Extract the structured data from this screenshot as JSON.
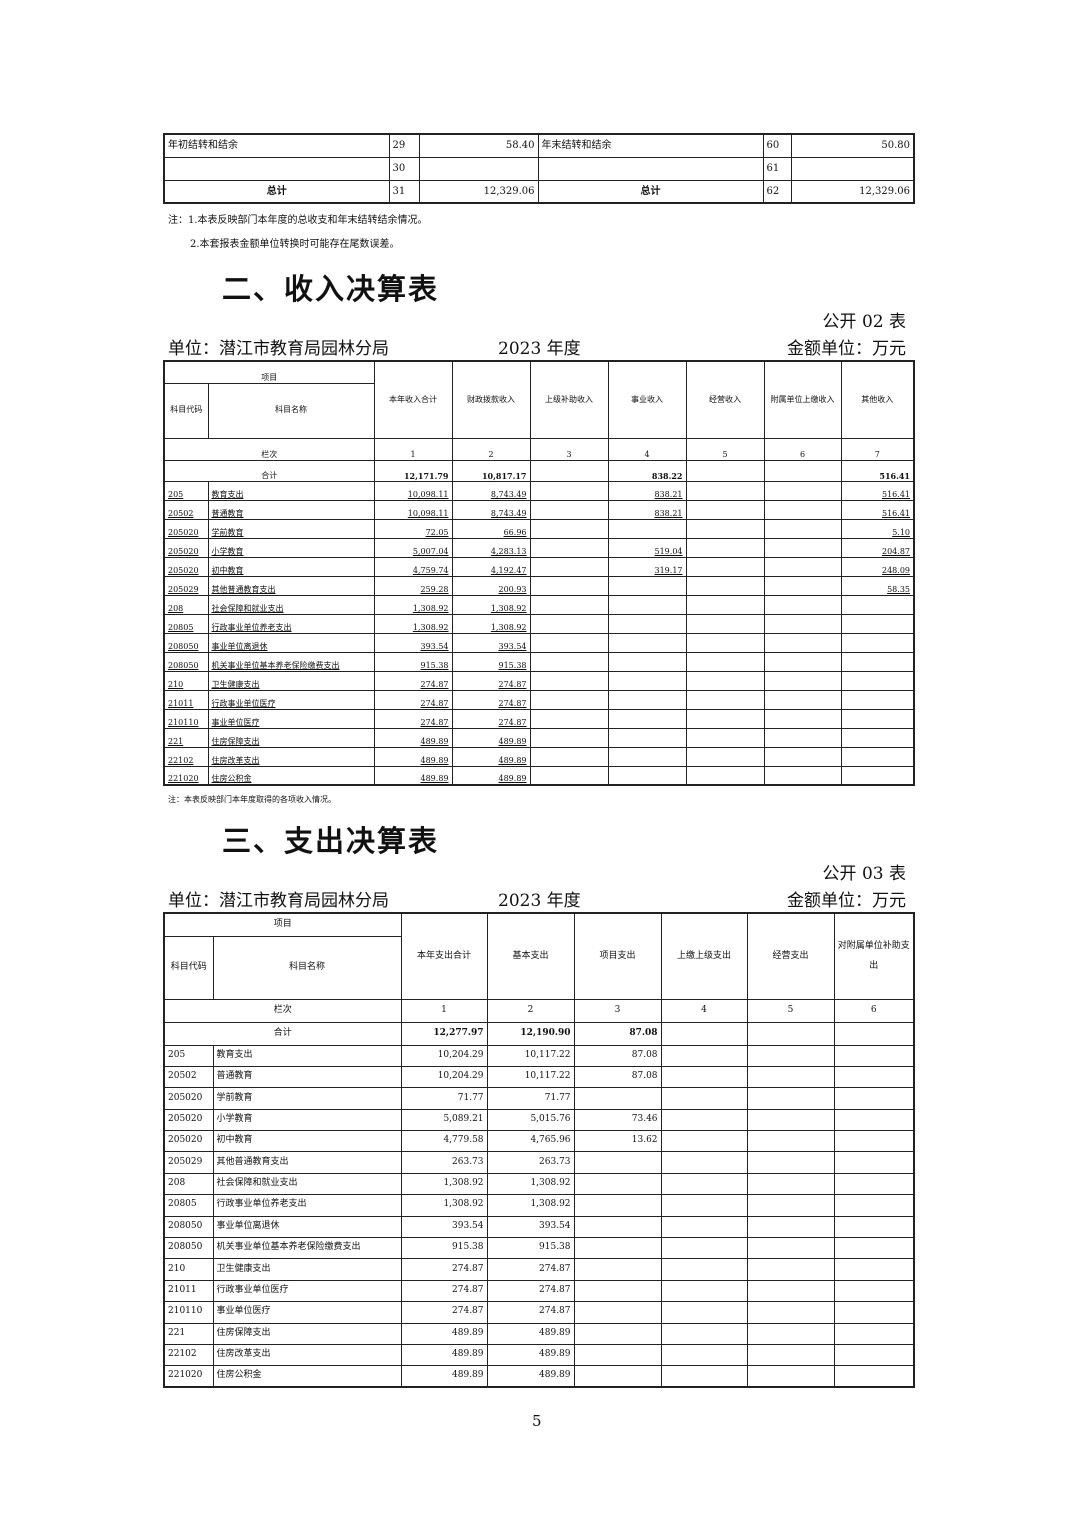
{
  "summary_table": {
    "rows": [
      {
        "left_label": "年初结转和结余",
        "left_no": "29",
        "left_amount": "58.40",
        "right_label": "年末结转和结余",
        "right_no": "60",
        "right_amount": "50.80"
      },
      {
        "left_label": "",
        "left_no": "30",
        "left_amount": "",
        "right_label": "",
        "right_no": "61",
        "right_amount": ""
      },
      {
        "left_label": "总计",
        "left_no": "31",
        "left_amount": "12,329.06",
        "right_label": "总计",
        "right_no": "62",
        "right_amount": "12,329.06"
      }
    ],
    "notes": [
      "注：1.本表反映部门本年度的总收支和年末结转结余情况。",
      "2.本套报表金额单位转换时可能存在尾数误差。"
    ]
  },
  "income": {
    "title": "二、收入决算表",
    "code": "公开 02 表",
    "unit": "单位：潜江市教育局园林分局",
    "year": "2023 年度",
    "currency": "金额单位：万元",
    "header_item": "项目",
    "header_code": "科目代码",
    "header_name": "科目名称",
    "columns": [
      "本年收入合计",
      "财政拨款收入",
      "上级补助收入",
      "事业收入",
      "经营收入",
      "附属单位上缴收入",
      "其他收入"
    ],
    "col_no_label": "栏次",
    "col_nos": [
      "1",
      "2",
      "3",
      "4",
      "5",
      "6",
      "7"
    ],
    "total_label": "合计",
    "total": [
      "12,171.79",
      "10,817.17",
      "",
      "838.22",
      "",
      "",
      "516.41"
    ],
    "rows": [
      [
        "205",
        "教育支出",
        "10,098.11",
        "8,743.49",
        "",
        "838.21",
        "",
        "",
        "516.41"
      ],
      [
        "20502",
        "普通教育",
        "10,098.11",
        "8,743.49",
        "",
        "838.21",
        "",
        "",
        "516.41"
      ],
      [
        "205020",
        "学前教育",
        "72.05",
        "66.96",
        "",
        "",
        "",
        "",
        "5.10"
      ],
      [
        "205020",
        "小学教育",
        "5,007.04",
        "4,283.13",
        "",
        "519.04",
        "",
        "",
        "204.87"
      ],
      [
        "205020",
        "初中教育",
        "4,759.74",
        "4,192.47",
        "",
        "319.17",
        "",
        "",
        "248.09"
      ],
      [
        "205029",
        "其他普通教育支出",
        "259.28",
        "200.93",
        "",
        "",
        "",
        "",
        "58.35"
      ],
      [
        "208",
        "社会保障和就业支出",
        "1,308.92",
        "1,308.92",
        "",
        "",
        "",
        "",
        ""
      ],
      [
        "20805",
        "行政事业单位养老支出",
        "1,308.92",
        "1,308.92",
        "",
        "",
        "",
        "",
        ""
      ],
      [
        "208050",
        "事业单位离退休",
        "393.54",
        "393.54",
        "",
        "",
        "",
        "",
        ""
      ],
      [
        "208050",
        "机关事业单位基本养老保险缴费支出",
        "915.38",
        "915.38",
        "",
        "",
        "",
        "",
        ""
      ],
      [
        "210",
        "卫生健康支出",
        "274.87",
        "274.87",
        "",
        "",
        "",
        "",
        ""
      ],
      [
        "21011",
        "行政事业单位医疗",
        "274.87",
        "274.87",
        "",
        "",
        "",
        "",
        ""
      ],
      [
        "210110",
        "事业单位医疗",
        "274.87",
        "274.87",
        "",
        "",
        "",
        "",
        ""
      ],
      [
        "221",
        "住房保障支出",
        "489.89",
        "489.89",
        "",
        "",
        "",
        "",
        ""
      ],
      [
        "22102",
        "住房改革支出",
        "489.89",
        "489.89",
        "",
        "",
        "",
        "",
        ""
      ],
      [
        "221020",
        "住房公积金",
        "489.89",
        "489.89",
        "",
        "",
        "",
        "",
        ""
      ]
    ],
    "note": "注：本表反映部门本年度取得的各项收入情况。"
  },
  "expense": {
    "title": "三、支出决算表",
    "code": "公开 03 表",
    "unit": "单位：潜江市教育局园林分局",
    "year": "2023 年度",
    "currency": "金额单位：万元",
    "header_item": "项目",
    "header_code": "科目代码",
    "header_name": "科目名称",
    "columns": [
      "本年支出合计",
      "基本支出",
      "项目支出",
      "上缴上级支出",
      "经营支出",
      "对附属单位补助支出"
    ],
    "col_no_label": "栏次",
    "col_nos": [
      "1",
      "2",
      "3",
      "4",
      "5",
      "6"
    ],
    "total_label": "合计",
    "total": [
      "12,277.97",
      "12,190.90",
      "87.08",
      "",
      "",
      ""
    ],
    "rows": [
      [
        "205",
        "教育支出",
        "10,204.29",
        "10,117.22",
        "87.08",
        "",
        "",
        ""
      ],
      [
        "20502",
        "普通教育",
        "10,204.29",
        "10,117.22",
        "87.08",
        "",
        "",
        ""
      ],
      [
        "205020",
        "学前教育",
        "71.77",
        "71.77",
        "",
        "",
        "",
        ""
      ],
      [
        "205020",
        "小学教育",
        "5,089.21",
        "5,015.76",
        "73.46",
        "",
        "",
        ""
      ],
      [
        "205020",
        "初中教育",
        "4,779.58",
        "4,765.96",
        "13.62",
        "",
        "",
        ""
      ],
      [
        "205029",
        "其他普通教育支出",
        "263.73",
        "263.73",
        "",
        "",
        "",
        ""
      ],
      [
        "208",
        "社会保障和就业支出",
        "1,308.92",
        "1,308.92",
        "",
        "",
        "",
        ""
      ],
      [
        "20805",
        "行政事业单位养老支出",
        "1,308.92",
        "1,308.92",
        "",
        "",
        "",
        ""
      ],
      [
        "208050",
        "事业单位离退休",
        "393.54",
        "393.54",
        "",
        "",
        "",
        ""
      ],
      [
        "208050",
        "机关事业单位基本养老保险缴费支出",
        "915.38",
        "915.38",
        "",
        "",
        "",
        ""
      ],
      [
        "210",
        "卫生健康支出",
        "274.87",
        "274.87",
        "",
        "",
        "",
        ""
      ],
      [
        "21011",
        "行政事业单位医疗",
        "274.87",
        "274.87",
        "",
        "",
        "",
        ""
      ],
      [
        "210110",
        "事业单位医疗",
        "274.87",
        "274.87",
        "",
        "",
        "",
        ""
      ],
      [
        "221",
        "住房保障支出",
        "489.89",
        "489.89",
        "",
        "",
        "",
        ""
      ],
      [
        "22102",
        "住房改革支出",
        "489.89",
        "489.89",
        "",
        "",
        "",
        ""
      ],
      [
        "221020",
        "住房公积金",
        "489.89",
        "489.89",
        "",
        "",
        "",
        ""
      ]
    ]
  },
  "page_number": "5"
}
